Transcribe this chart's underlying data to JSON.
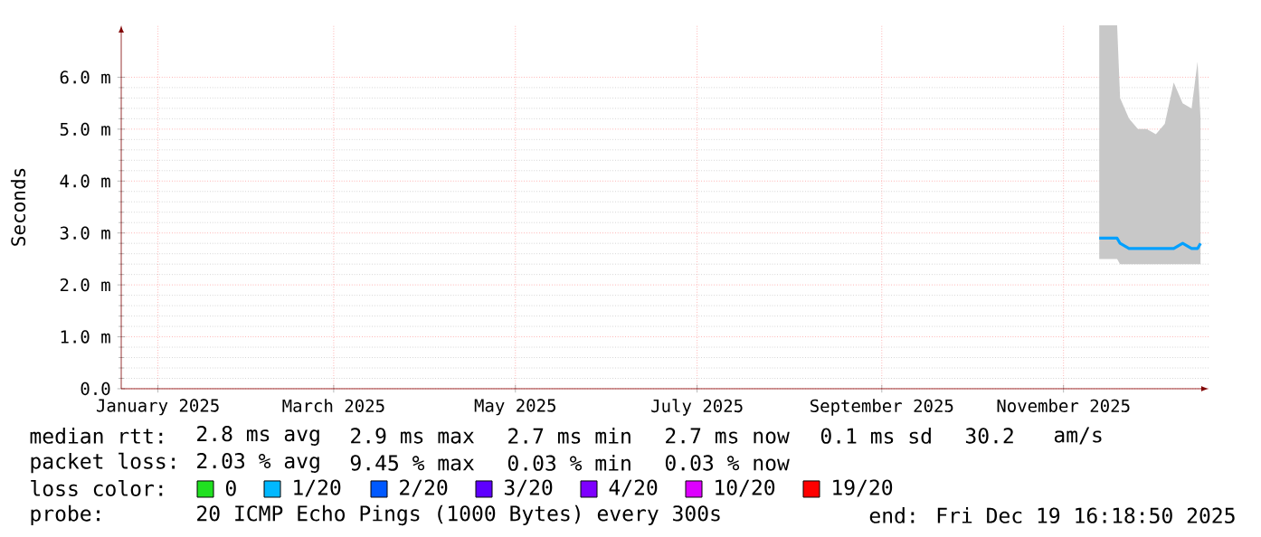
{
  "chart_data": {
    "type": "line",
    "ylabel": "Seconds",
    "xlim": [
      "2024-12-19T16:18",
      "2025-12-19T16:18"
    ],
    "xticks": [
      {
        "value": "2025-01-01",
        "label": "January 2025"
      },
      {
        "value": "2025-03-01",
        "label": "March 2025"
      },
      {
        "value": "2025-05-01",
        "label": "May 2025"
      },
      {
        "value": "2025-07-01",
        "label": "July 2025"
      },
      {
        "value": "2025-09-01",
        "label": "September 2025"
      },
      {
        "value": "2025-11-01",
        "label": "November 2025"
      }
    ],
    "ylim": [
      0,
      7
    ],
    "yticks": [
      {
        "value": 0,
        "label": "0.0"
      },
      {
        "value": 1,
        "label": "1.0 m"
      },
      {
        "value": 2,
        "label": "2.0 m"
      },
      {
        "value": 3,
        "label": "3.0 m"
      },
      {
        "value": 4,
        "label": "4.0 m"
      },
      {
        "value": 5,
        "label": "5.0 m"
      },
      {
        "value": 6,
        "label": "6.0 m"
      }
    ],
    "grid": true,
    "x": [
      "2025-11-13",
      "2025-11-16",
      "2025-11-19",
      "2025-11-20",
      "2025-11-23",
      "2025-11-26",
      "2025-11-29",
      "2025-12-02",
      "2025-12-05",
      "2025-12-08",
      "2025-12-11",
      "2025-12-14",
      "2025-12-16",
      "2025-12-17"
    ],
    "series": [
      {
        "color": "#00a0ff",
        "values": [
          2.9,
          2.9,
          2.9,
          2.8,
          2.7,
          2.7,
          2.7,
          2.7,
          2.7,
          2.7,
          2.8,
          2.7,
          2.7,
          2.8
        ],
        "lower": [
          2.5,
          2.5,
          2.5,
          2.4,
          2.4,
          2.4,
          2.4,
          2.4,
          2.4,
          2.4,
          2.4,
          2.4,
          2.4,
          2.4
        ],
        "upper": [
          7.0,
          7.0,
          7.0,
          5.6,
          5.2,
          5.0,
          5.0,
          4.9,
          5.1,
          5.9,
          5.5,
          5.4,
          6.3,
          5.2
        ]
      }
    ],
    "annotations": [
      "median rtt:",
      "2.8 ms avg",
      "2.9 ms max",
      "2.7 ms min",
      "2.7 ms now",
      "0.1 ms sd",
      "30.2",
      "am/s",
      "packet loss:",
      "2.03 % avg",
      "9.45 % max",
      "0.03 % min",
      "0.03 % now",
      "loss color:",
      "0",
      "1/20",
      "2/20",
      "3/20",
      "4/20",
      "10/20",
      "19/20",
      "probe:",
      "20 ICMP Echo Pings (1000 Bytes) every 300s",
      "end: Fri Dec 19 16:18:50 2025"
    ]
  }
}
